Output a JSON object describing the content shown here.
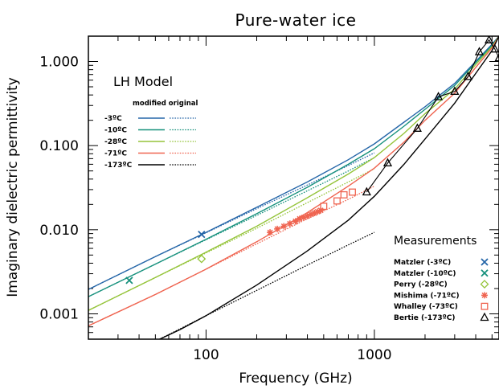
{
  "chart_data": {
    "type": "line",
    "title": "Pure-water ice",
    "xlabel": "Frequency (GHz)",
    "ylabel": "Imaginary dielectric permittivity",
    "xscale": "log",
    "yscale": "log",
    "xlim": [
      20,
      5500
    ],
    "ylim": [
      0.0005,
      2.0
    ],
    "xticks": [
      100,
      1000
    ],
    "xtick_labels": [
      "100",
      "1000"
    ],
    "yticks": [
      0.001,
      0.01,
      0.1,
      1.0
    ],
    "ytick_labels": [
      "0.001",
      "0.010",
      "0.100",
      "1.000"
    ],
    "grid": false,
    "model_legend": {
      "title": "LH Model",
      "header": "modified original",
      "placement": "top-left"
    },
    "series": [
      {
        "name": "-3ºC",
        "color": "#2566a8",
        "modified": [
          [
            20,
            0.00195
          ],
          [
            50,
            0.0048
          ],
          [
            100,
            0.0093
          ],
          [
            200,
            0.0185
          ],
          [
            400,
            0.037
          ],
          [
            700,
            0.068
          ],
          [
            1000,
            0.105
          ],
          [
            1500,
            0.19
          ],
          [
            2000,
            0.29
          ],
          [
            3000,
            0.55
          ],
          [
            4000,
            1.0
          ],
          [
            5000,
            1.6
          ],
          [
            5500,
            2.0
          ]
        ],
        "original": [
          [
            20,
            0.00195
          ],
          [
            50,
            0.0048
          ],
          [
            100,
            0.0092
          ],
          [
            200,
            0.0178
          ],
          [
            400,
            0.034
          ],
          [
            700,
            0.058
          ],
          [
            1000,
            0.082
          ]
        ]
      },
      {
        "name": "-10ºC",
        "color": "#17917d",
        "modified": [
          [
            20,
            0.0016
          ],
          [
            50,
            0.0039
          ],
          [
            100,
            0.0077
          ],
          [
            200,
            0.0155
          ],
          [
            400,
            0.032
          ],
          [
            700,
            0.06
          ],
          [
            1000,
            0.092
          ],
          [
            1500,
            0.17
          ],
          [
            2000,
            0.27
          ],
          [
            3000,
            0.52
          ],
          [
            4000,
            0.97
          ],
          [
            5000,
            1.55
          ],
          [
            5500,
            2.0
          ]
        ],
        "original": [
          [
            20,
            0.0016
          ],
          [
            50,
            0.0039
          ],
          [
            100,
            0.0076
          ],
          [
            200,
            0.0148
          ],
          [
            400,
            0.029
          ],
          [
            700,
            0.05
          ],
          [
            1000,
            0.072
          ]
        ]
      },
      {
        "name": "-28ºC",
        "color": "#95c43a",
        "modified": [
          [
            20,
            0.0011
          ],
          [
            50,
            0.0027
          ],
          [
            100,
            0.0054
          ],
          [
            200,
            0.011
          ],
          [
            400,
            0.024
          ],
          [
            700,
            0.046
          ],
          [
            1000,
            0.072
          ],
          [
            1500,
            0.14
          ],
          [
            2000,
            0.24
          ],
          [
            3000,
            0.47
          ],
          [
            4000,
            0.92
          ],
          [
            5000,
            1.5
          ],
          [
            5500,
            2.0
          ]
        ],
        "original": [
          [
            20,
            0.0011
          ],
          [
            50,
            0.0027
          ],
          [
            100,
            0.0053
          ],
          [
            200,
            0.0104
          ],
          [
            400,
            0.021
          ],
          [
            700,
            0.037
          ],
          [
            1000,
            0.053
          ]
        ]
      },
      {
        "name": "-71ºC",
        "color": "#ef6450",
        "modified": [
          [
            20,
            0.00072
          ],
          [
            50,
            0.0017
          ],
          [
            100,
            0.0034
          ],
          [
            200,
            0.0072
          ],
          [
            400,
            0.016
          ],
          [
            700,
            0.033
          ],
          [
            1000,
            0.054
          ],
          [
            1500,
            0.11
          ],
          [
            2000,
            0.2
          ],
          [
            3000,
            0.42
          ],
          [
            4000,
            0.85
          ],
          [
            5000,
            1.45
          ],
          [
            5500,
            2.0
          ]
        ],
        "original": [
          [
            20,
            0.00072
          ],
          [
            50,
            0.0017
          ],
          [
            100,
            0.0034
          ],
          [
            200,
            0.0068
          ],
          [
            400,
            0.0135
          ],
          [
            700,
            0.023
          ],
          [
            1000,
            0.033
          ]
        ]
      },
      {
        "name": "-173ºC",
        "color": "#000000",
        "modified": [
          [
            53,
            0.0005
          ],
          [
            70,
            0.00065
          ],
          [
            100,
            0.00095
          ],
          [
            200,
            0.0022
          ],
          [
            400,
            0.0056
          ],
          [
            700,
            0.013
          ],
          [
            1000,
            0.025
          ],
          [
            1500,
            0.06
          ],
          [
            2000,
            0.12
          ],
          [
            3000,
            0.32
          ],
          [
            4000,
            0.72
          ],
          [
            5000,
            1.35
          ],
          [
            5500,
            2.0
          ]
        ],
        "original": [
          [
            53,
            0.0005
          ],
          [
            100,
            0.00095
          ],
          [
            200,
            0.0019
          ],
          [
            400,
            0.0038
          ],
          [
            700,
            0.0066
          ],
          [
            1000,
            0.0093
          ]
        ]
      }
    ],
    "measurements": {
      "title": "Measurements",
      "placement": "bottom-right",
      "sets": [
        {
          "name": "Matzler (-3ºC)",
          "color": "#2566a8",
          "marker": "x",
          "points": [
            [
              94,
              0.0088
            ]
          ]
        },
        {
          "name": "Matzler (-10ºC)",
          "color": "#17917d",
          "marker": "x",
          "points": [
            [
              35,
              0.0025
            ]
          ]
        },
        {
          "name": "Perry (-28ºC)",
          "color": "#95c43a",
          "marker": "diamond",
          "points": [
            [
              94,
              0.0045
            ]
          ]
        },
        {
          "name": "Mishima (-71ºC)",
          "color": "#ef6450",
          "marker": "asterisk",
          "points": [
            [
              240,
              0.0093
            ],
            [
              265,
              0.0102
            ],
            [
              290,
              0.011
            ],
            [
              315,
              0.0118
            ],
            [
              340,
              0.0126
            ],
            [
              360,
              0.0135
            ],
            [
              380,
              0.014
            ],
            [
              400,
              0.0146
            ],
            [
              420,
              0.0152
            ],
            [
              440,
              0.0158
            ],
            [
              460,
              0.0164
            ],
            [
              480,
              0.017
            ]
          ]
        },
        {
          "name": "Whalley (-73ºC)",
          "color": "#ef6450",
          "marker": "square",
          "points": [
            [
              500,
              0.019
            ],
            [
              600,
              0.022
            ],
            [
              660,
              0.026
            ],
            [
              740,
              0.028
            ]
          ]
        },
        {
          "name": "Bertie (-173ºC)",
          "color": "#000000",
          "marker": "triangle",
          "connected": true,
          "points": [
            [
              900,
              0.028
            ],
            [
              1200,
              0.062
            ],
            [
              1800,
              0.16
            ],
            [
              2400,
              0.38
            ],
            [
              3000,
              0.44
            ],
            [
              3600,
              0.66
            ],
            [
              4200,
              1.3
            ],
            [
              4800,
              1.8
            ],
            [
              5200,
              1.4
            ],
            [
              5500,
              1.1
            ]
          ]
        }
      ]
    }
  }
}
